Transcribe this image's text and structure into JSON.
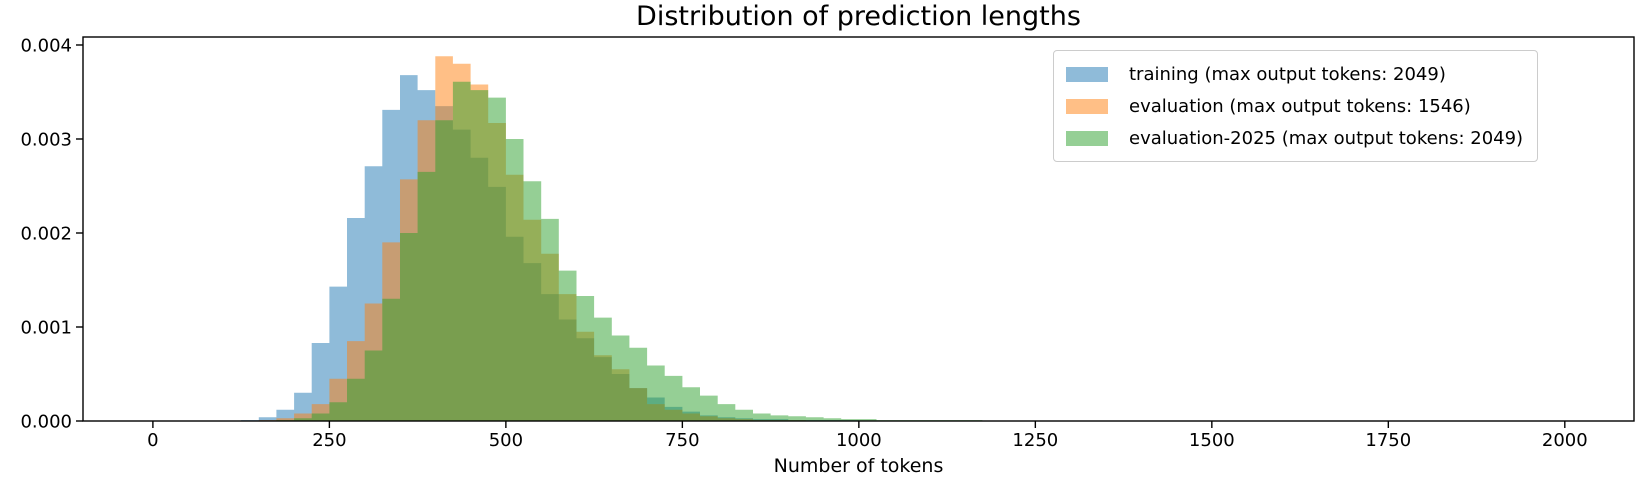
{
  "figure": {
    "title": "Distribution of prediction lengths",
    "background_color": "#ffffff",
    "axes_color": "#000000",
    "legend_border_color": "#cccccc"
  },
  "chart_data": {
    "type": "bar",
    "subtype": "overlaid-histogram",
    "title": "Distribution of prediction lengths",
    "xlabel": "Number of tokens",
    "ylabel": "",
    "grid": false,
    "legend_position": "upper right",
    "xlim": [
      -99,
      2098
    ],
    "ylim": [
      0,
      0.004085
    ],
    "x_ticks": [
      0,
      250,
      500,
      750,
      1000,
      1250,
      1500,
      1750,
      2000
    ],
    "y_tick_values": [
      0,
      0.001,
      0.002,
      0.003,
      0.004
    ],
    "y_tick_labels": [
      "0.000",
      "0.001",
      "0.002",
      "0.003",
      "0.004"
    ],
    "bin_start": 125,
    "bin_width": 25,
    "alpha": 0.5,
    "series": [
      {
        "name": "training (max output tokens: 2049)",
        "color": "#1f77b4",
        "values": [
          1e-05,
          4e-05,
          0.00012,
          0.0003,
          0.00083,
          0.00143,
          0.00216,
          0.00271,
          0.00331,
          0.00368,
          0.00352,
          0.00335,
          0.0031,
          0.0028,
          0.00249,
          0.00196,
          0.00168,
          0.00135,
          0.00108,
          0.00088,
          0.00068,
          0.0005,
          0.00035,
          0.00025,
          0.00015,
          0.0001,
          6e-05,
          4e-05,
          3e-05,
          2e-05,
          2e-05,
          1e-05,
          1e-05,
          1e-05,
          1e-05,
          0,
          0,
          0,
          0,
          0,
          0,
          0,
          0,
          0
        ]
      },
      {
        "name": "evaluation (max output tokens: 1546)",
        "color": "#ff7f0e",
        "values": [
          0,
          1e-05,
          3e-05,
          8e-05,
          0.00018,
          0.00045,
          0.00085,
          0.00125,
          0.0019,
          0.00257,
          0.0032,
          0.00388,
          0.0038,
          0.00358,
          0.00317,
          0.00262,
          0.00214,
          0.00178,
          0.00135,
          0.00095,
          0.0007,
          0.00055,
          0.00035,
          0.00018,
          0.00012,
          8e-05,
          5e-05,
          3e-05,
          2e-05,
          1e-05,
          1e-05,
          1e-05,
          0,
          0,
          0,
          0,
          0,
          0,
          0,
          0,
          0,
          0,
          0,
          0
        ]
      },
      {
        "name": "evaluation-2025 (max output tokens: 2049)",
        "color": "#2ca02c",
        "values": [
          0,
          0,
          1e-05,
          3e-05,
          8e-05,
          0.0002,
          0.00045,
          0.00075,
          0.0013,
          0.002,
          0.00265,
          0.0032,
          0.00361,
          0.00352,
          0.00344,
          0.003,
          0.00255,
          0.00215,
          0.0016,
          0.00133,
          0.0011,
          0.00091,
          0.00078,
          0.00059,
          0.00048,
          0.00036,
          0.00027,
          0.00018,
          0.00012,
          8e-05,
          6e-05,
          5e-05,
          4e-05,
          3e-05,
          2e-05,
          2e-05,
          1e-05,
          1e-05,
          1e-05,
          1e-05,
          1e-05,
          1e-05,
          0,
          0
        ]
      }
    ]
  }
}
